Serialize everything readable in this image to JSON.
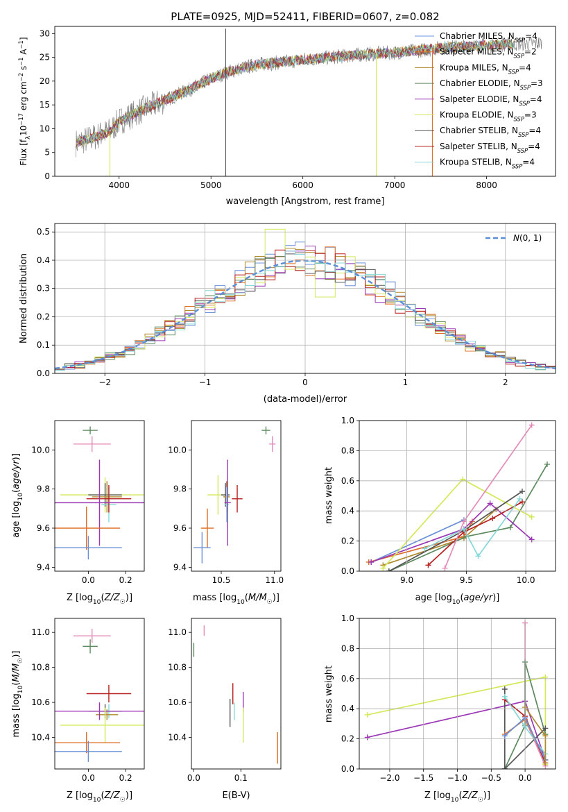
{
  "figure": {
    "title": "PLATE=0925, MJD=52411, FIBERID=0607, z=0.082"
  },
  "colors": {
    "Chabrier MILES": "#6a8fd8",
    "Salpeter MILES": "#e0702a",
    "Kroupa MILES": "#b08a2e",
    "Chabrier ELODIE": "#5c8a5e",
    "Salpeter ELODIE": "#9b37b5",
    "Kroupa ELODIE": "#d4e85a",
    "Chabrier STELIB": "#555555",
    "Salpeter STELIB": "#b81f1f",
    "Kroupa STELIB": "#86d8d8",
    "pink": "#e58bb8",
    "gaussian": "#5a8fd8"
  },
  "chart_data": [
    {
      "id": "spectrum",
      "type": "line",
      "xlabel": "wavelength [Angstrom, rest frame]",
      "ylabel": "Flux [f_λ10^{-17} erg cm^{-2} s^{-1} A^{-1}]",
      "xlim": [
        3300,
        8750
      ],
      "ylim": [
        0,
        31.5
      ],
      "xticks": [
        4000,
        5000,
        6000,
        7000,
        8000
      ],
      "yticks": [
        0,
        5,
        10,
        15,
        20,
        25,
        30
      ],
      "grid": false,
      "legend_position": "right",
      "series": [
        {
          "name": "Chabrier MILES, N_SSP=4",
          "label_main": "Chabrier MILES, N",
          "label_sub": "SSP",
          "label_end": "=4",
          "color_key": "Chabrier MILES"
        },
        {
          "name": "Salpeter MILES, N_SSP=2",
          "label_main": "Salpeter MILES, N",
          "label_sub": "SSP",
          "label_end": "=2",
          "color_key": "Salpeter MILES"
        },
        {
          "name": "Kroupa MILES, N_SSP=4",
          "label_main": "Kroupa MILES, N",
          "label_sub": "SSP",
          "label_end": "=4",
          "color_key": "Kroupa MILES"
        },
        {
          "name": "Chabrier ELODIE, N_SSP=3",
          "label_main": "Chabrier ELODIE, N",
          "label_sub": "SSP",
          "label_end": "=3",
          "color_key": "Chabrier ELODIE"
        },
        {
          "name": "Salpeter ELODIE, N_SSP=4",
          "label_main": "Salpeter ELODIE, N",
          "label_sub": "SSP",
          "label_end": "=4",
          "color_key": "Salpeter ELODIE"
        },
        {
          "name": "Kroupa ELODIE, N_SSP=3",
          "label_main": "Kroupa ELODIE, N",
          "label_sub": "SSP",
          "label_end": "=3",
          "color_key": "Kroupa ELODIE"
        },
        {
          "name": "Chabrier STELIB, N_SSP=4",
          "label_main": "Chabrier STELIB, N",
          "label_sub": "SSP",
          "label_end": "=4",
          "color_key": "Chabrier STELIB"
        },
        {
          "name": "Salpeter STELIB, N_SSP=4",
          "label_main": "Salpeter STELIB, N",
          "label_sub": "SSP",
          "label_end": "=4",
          "color_key": "Salpeter STELIB"
        },
        {
          "name": "Kroupa STELIB, N_SSP=4",
          "label_main": "Kroupa STELIB, N",
          "label_sub": "SSP",
          "label_end": "=4",
          "color_key": "Kroupa STELIB"
        }
      ],
      "continuum": {
        "x": [
          3530,
          3700,
          3900,
          4000,
          4200,
          4500,
          4800,
          5000,
          5200,
          5500,
          5800,
          6000,
          6300,
          6600,
          7000,
          7300,
          7500,
          7800,
          8000,
          8300,
          8600
        ],
        "y": [
          7.0,
          8.0,
          9.5,
          11.5,
          13.5,
          16.0,
          18.5,
          20.5,
          22.0,
          23.5,
          24.0,
          24.5,
          25.0,
          25.5,
          26.0,
          26.5,
          27.0,
          27.3,
          27.5,
          27.8,
          28.0
        ]
      },
      "features": {
        "spike_5160": {
          "x": 5160,
          "y": 31.0
        },
        "dip_3900": {
          "x": 3900,
          "y": 0.0
        },
        "drop_6800": {
          "x": 6800,
          "y": 0.0
        },
        "drop_7410": {
          "x": 7410,
          "y": 0.0
        }
      }
    },
    {
      "id": "residuals",
      "type": "histogram",
      "xlabel": "(data-model)/error",
      "ylabel": "Normed distribution",
      "xlim": [
        -2.5,
        2.5
      ],
      "ylim": [
        0,
        0.53
      ],
      "xticks": [
        -2,
        -1,
        0,
        1,
        2
      ],
      "yticks": [
        0.0,
        0.1,
        0.2,
        0.3,
        0.4,
        0.5
      ],
      "grid": true,
      "legend": [
        "N(0, 1)"
      ],
      "legend_position": "top-right",
      "bin_width": 0.1,
      "gaussian": {
        "name": "N(0, 1)",
        "mean": 0,
        "sigma": 1
      },
      "highlight_bins": [
        {
          "x": -0.3,
          "y": 0.51,
          "color_key": "Kroupa ELODIE"
        },
        {
          "x": 0.2,
          "y": 0.27,
          "color_key": "Kroupa ELODIE"
        },
        {
          "x": 0.7,
          "y": 0.35,
          "color_key": "Kroupa STELIB"
        }
      ]
    },
    {
      "id": "age_vs_Z",
      "type": "errorbar",
      "xlabel": "Z [log10(Z/Z☉)]",
      "ylabel": "age [log10(age/yr)]",
      "xlim": [
        -0.18,
        0.3
      ],
      "ylim": [
        9.38,
        10.15
      ],
      "xticks": [
        0.0,
        0.2
      ],
      "yticks": [
        9.4,
        9.6,
        9.8,
        10.0
      ],
      "grid": false,
      "points": [
        {
          "color_key": "pink",
          "x": 0.02,
          "xerr": 0.1,
          "y": 10.03,
          "yerr": 0.04
        },
        {
          "color_key": "Chabrier ELODIE",
          "x": 0.01,
          "xerr": 0.04,
          "y": 10.1,
          "yerr": 0.02
        },
        {
          "color_key": "Kroupa ELODIE",
          "x": 0.09,
          "xerr": 0.24,
          "y": 9.77,
          "yerr": 0.09
        },
        {
          "color_key": "Chabrier STELIB",
          "x": 0.09,
          "xerr": 0.09,
          "y": 9.77,
          "yerr": 0.06
        },
        {
          "color_key": "Kroupa MILES",
          "x": 0.1,
          "xerr": 0.08,
          "y": 9.76,
          "yerr": 0.08
        },
        {
          "color_key": "Kroupa STELIB",
          "x": 0.11,
          "xerr": 0.04,
          "y": 9.72,
          "yerr": 0.09
        },
        {
          "color_key": "Salpeter STELIB",
          "x": 0.11,
          "xerr": 0.12,
          "y": 9.75,
          "yerr": 0.07
        },
        {
          "color_key": "Salpeter ELODIE",
          "x": 0.06,
          "xerr": 0.29,
          "y": 9.73,
          "yerr": 0.22
        },
        {
          "color_key": "Salpeter MILES",
          "x": -0.01,
          "xerr": 0.18,
          "y": 9.6,
          "yerr": 0.11
        },
        {
          "color_key": "Chabrier MILES",
          "x": 0.0,
          "xerr": 0.18,
          "y": 9.5,
          "yerr": 0.06
        }
      ]
    },
    {
      "id": "age_vs_mass",
      "type": "errorbar",
      "xlabel": "mass [log10(M/M☉)]",
      "ylabel": "",
      "xlim": [
        10.22,
        11.06
      ],
      "ylim": [
        9.38,
        10.15
      ],
      "xticks": [
        10.5,
        11.0
      ],
      "yticks": [
        9.4,
        9.6,
        9.8,
        10.0
      ],
      "grid": false,
      "points": [
        {
          "color_key": "pink",
          "x": 10.98,
          "xerr": 0.03,
          "y": 10.03,
          "yerr": 0.04
        },
        {
          "color_key": "Chabrier ELODIE",
          "x": 10.92,
          "xerr": 0.04,
          "y": 10.1,
          "yerr": 0.02
        },
        {
          "color_key": "Kroupa ELODIE",
          "x": 10.47,
          "xerr": 0.1,
          "y": 9.77,
          "yerr": 0.1
        },
        {
          "color_key": "Chabrier STELIB",
          "x": 10.54,
          "xerr": 0.04,
          "y": 9.77,
          "yerr": 0.06
        },
        {
          "color_key": "Kroupa MILES",
          "x": 10.55,
          "xerr": 0.03,
          "y": 9.76,
          "yerr": 0.08
        },
        {
          "color_key": "Kroupa STELIB",
          "x": 10.55,
          "xerr": 0.02,
          "y": 9.72,
          "yerr": 0.09
        },
        {
          "color_key": "Salpeter STELIB",
          "x": 10.65,
          "xerr": 0.05,
          "y": 9.75,
          "yerr": 0.07
        },
        {
          "color_key": "Salpeter ELODIE",
          "x": 10.56,
          "xerr": 0.03,
          "y": 9.73,
          "yerr": 0.22
        },
        {
          "color_key": "Salpeter MILES",
          "x": 10.37,
          "xerr": 0.06,
          "y": 9.6,
          "yerr": 0.1
        },
        {
          "color_key": "Chabrier MILES",
          "x": 10.32,
          "xerr": 0.08,
          "y": 9.5,
          "yerr": 0.08
        }
      ]
    },
    {
      "id": "weight_vs_age",
      "type": "line",
      "xlabel": "age [log10(age/yr)]",
      "ylabel": "mass weight",
      "xlim": [
        8.6,
        10.25
      ],
      "ylim": [
        0.0,
        1.0
      ],
      "xticks": [
        9.0,
        9.5,
        10.0
      ],
      "yticks": [
        0.0,
        0.2,
        0.4,
        0.6,
        0.8,
        1.0
      ],
      "grid": true,
      "series": [
        {
          "color_key": "Chabrier MILES",
          "x": [
            8.7,
            9.48
          ],
          "y": [
            0.06,
            0.34
          ]
        },
        {
          "color_key": "Salpeter MILES",
          "x": [
            8.68,
            9.48,
            9.55
          ],
          "y": [
            0.06,
            0.23,
            0.33
          ]
        },
        {
          "color_key": "Kroupa MILES",
          "x": [
            8.8,
            9.48,
            9.75
          ],
          "y": [
            0.04,
            0.22,
            0.41
          ]
        },
        {
          "color_key": "Chabrier ELODIE",
          "x": [
            8.85,
            9.5,
            9.87,
            10.18
          ],
          "y": [
            0.0,
            0.23,
            0.29,
            0.71
          ]
        },
        {
          "color_key": "Salpeter ELODIE",
          "x": [
            8.7,
            9.48,
            9.7,
            10.05
          ],
          "y": [
            0.06,
            0.28,
            0.45,
            0.21
          ]
        },
        {
          "color_key": "Kroupa ELODIE",
          "x": [
            8.8,
            9.47,
            10.05
          ],
          "y": [
            0.02,
            0.61,
            0.36
          ]
        },
        {
          "color_key": "Chabrier STELIB",
          "x": [
            8.85,
            9.48,
            9.97
          ],
          "y": [
            0.0,
            0.27,
            0.53
          ]
        },
        {
          "color_key": "Salpeter STELIB",
          "x": [
            9.18,
            9.48,
            9.72,
            9.97
          ],
          "y": [
            0.04,
            0.26,
            0.35,
            0.46
          ]
        },
        {
          "color_key": "Kroupa STELIB",
          "x": [
            9.15,
            9.48,
            9.6,
            9.95
          ],
          "y": [
            0.15,
            0.28,
            0.1,
            0.48
          ]
        },
        {
          "color_key": "pink",
          "x": [
            9.32,
            9.48,
            10.05
          ],
          "y": [
            0.02,
            0.33,
            0.97
          ]
        }
      ]
    },
    {
      "id": "mass_vs_Z",
      "type": "errorbar",
      "xlabel": "Z [log10(Z/Z☉)]",
      "ylabel": "mass [log10(M/M☉)]",
      "xlim": [
        -0.18,
        0.3
      ],
      "ylim": [
        10.22,
        11.08
      ],
      "xticks": [
        0.0,
        0.2
      ],
      "yticks": [
        10.4,
        10.6,
        10.8,
        11.0
      ],
      "grid": false,
      "points": [
        {
          "color_key": "pink",
          "x": 0.02,
          "xerr": 0.1,
          "y": 10.98,
          "yerr": 0.04
        },
        {
          "color_key": "Chabrier ELODIE",
          "x": 0.01,
          "xerr": 0.04,
          "y": 10.92,
          "yerr": 0.04
        },
        {
          "color_key": "Salpeter STELIB",
          "x": 0.11,
          "xerr": 0.12,
          "y": 10.65,
          "yerr": 0.05
        },
        {
          "color_key": "Kroupa STELIB",
          "x": 0.11,
          "xerr": 0.05,
          "y": 10.55,
          "yerr": 0.04
        },
        {
          "color_key": "Chabrier STELIB",
          "x": 0.09,
          "xerr": 0.09,
          "y": 10.55,
          "yerr": 0.04
        },
        {
          "color_key": "Kroupa MILES",
          "x": 0.1,
          "xerr": 0.06,
          "y": 10.53,
          "yerr": 0.03
        },
        {
          "color_key": "Salpeter ELODIE",
          "x": 0.06,
          "xerr": 0.29,
          "y": 10.55,
          "yerr": 0.05
        },
        {
          "color_key": "Kroupa ELODIE",
          "x": 0.09,
          "xerr": 0.24,
          "y": 10.47,
          "yerr": 0.1
        },
        {
          "color_key": "Salpeter MILES",
          "x": -0.01,
          "xerr": 0.18,
          "y": 10.37,
          "yerr": 0.06
        },
        {
          "color_key": "Chabrier MILES",
          "x": 0.0,
          "xerr": 0.18,
          "y": 10.32,
          "yerr": 0.06
        }
      ]
    },
    {
      "id": "mass_vs_EBV",
      "type": "errorbar",
      "xlabel": "E(B-V)",
      "ylabel": "",
      "xlim": [
        -0.005,
        0.185
      ],
      "ylim": [
        10.22,
        11.08
      ],
      "xticks": [
        0.0,
        0.1
      ],
      "yticks": [
        10.4,
        10.6,
        10.8,
        11.0
      ],
      "grid": false,
      "points": [
        {
          "color_key": "pink",
          "x": 0.022,
          "xerr": 0.0,
          "y": 11.01,
          "yerr": 0.03
        },
        {
          "color_key": "Chabrier ELODIE",
          "x": 0.0,
          "xerr": 0.0,
          "y": 10.9,
          "yerr": 0.04
        },
        {
          "color_key": "Salpeter STELIB",
          "x": 0.083,
          "xerr": 0.0,
          "y": 10.65,
          "yerr": 0.06
        },
        {
          "color_key": "Salpeter ELODIE",
          "x": 0.105,
          "xerr": 0.0,
          "y": 10.6,
          "yerr": 0.06
        },
        {
          "color_key": "Chabrier STELIB",
          "x": 0.077,
          "xerr": 0.0,
          "y": 10.54,
          "yerr": 0.08
        },
        {
          "color_key": "Kroupa STELIB",
          "x": 0.086,
          "xerr": 0.0,
          "y": 10.55,
          "yerr": 0.05
        },
        {
          "color_key": "Kroupa ELODIE",
          "x": 0.105,
          "xerr": 0.0,
          "y": 10.47,
          "yerr": 0.1
        },
        {
          "color_key": "Salpeter MILES",
          "x": 0.178,
          "xerr": 0.0,
          "y": 10.34,
          "yerr": 0.09
        }
      ]
    },
    {
      "id": "weight_vs_Z",
      "type": "line",
      "xlabel": "Z [log10(Z/Z☉)]",
      "ylabel": "mass weight",
      "xlim": [
        -2.45,
        0.45
      ],
      "ylim": [
        0.0,
        1.0
      ],
      "xticks": [
        -2.0,
        -1.5,
        -1.0,
        -0.5,
        0.0
      ],
      "yticks": [
        0.0,
        0.2,
        0.4,
        0.6,
        0.8,
        1.0
      ],
      "grid": true,
      "series": [
        {
          "color_key": "Kroupa ELODIE",
          "x": [
            -2.33,
            0.3,
            0.3
          ],
          "y": [
            0.36,
            0.61,
            0.03
          ]
        },
        {
          "color_key": "Salpeter ELODIE",
          "x": [
            -2.33,
            0.0,
            0.3
          ],
          "y": [
            0.21,
            0.45,
            0.06
          ]
        },
        {
          "color_key": "pink",
          "x": [
            0.0,
            0.0,
            0.3
          ],
          "y": [
            0.97,
            0.33,
            0.02
          ]
        },
        {
          "color_key": "Chabrier ELODIE",
          "x": [
            -0.3,
            0.0,
            0.0,
            0.3
          ],
          "y": [
            0.0,
            0.29,
            0.71,
            0.23
          ]
        },
        {
          "color_key": "Chabrier STELIB",
          "x": [
            -0.3,
            -0.3,
            0.3
          ],
          "y": [
            0.53,
            0.0,
            0.27
          ]
        },
        {
          "color_key": "Salpeter STELIB",
          "x": [
            -0.3,
            0.0,
            0.3
          ],
          "y": [
            0.46,
            0.35,
            0.04
          ]
        },
        {
          "color_key": "Kroupa STELIB",
          "x": [
            -0.3,
            0.0,
            0.3
          ],
          "y": [
            0.48,
            0.28,
            0.1
          ]
        },
        {
          "color_key": "Salpeter MILES",
          "x": [
            -0.3,
            0.0,
            0.3
          ],
          "y": [
            0.23,
            0.33,
            0.06
          ]
        },
        {
          "color_key": "Chabrier MILES",
          "x": [
            -0.3,
            0.0,
            0.3
          ],
          "y": [
            0.22,
            0.34,
            0.06
          ]
        },
        {
          "color_key": "Kroupa MILES",
          "x": [
            0.0,
            0.3,
            0.3
          ],
          "y": [
            0.41,
            0.22,
            0.04
          ]
        }
      ]
    }
  ]
}
